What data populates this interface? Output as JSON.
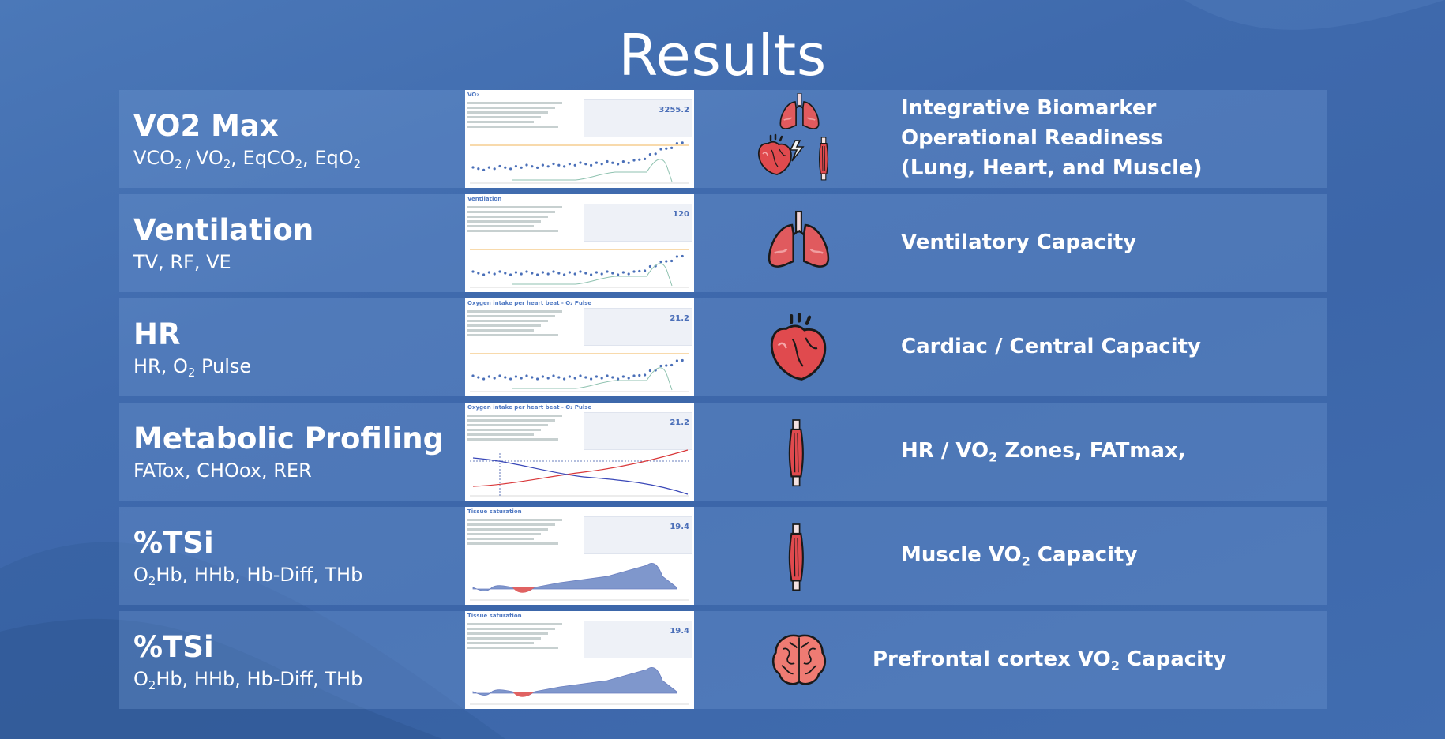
{
  "title": "Results",
  "rows": [
    {
      "head": "VO2 Max",
      "sub_html": "VCO<sub>2 /</sub> VO<sub>2</sub>, EqCO<sub>2</sub>, EqO<sub>2</sub>",
      "thumb_title": "VO₂",
      "thumb_value": "3255.2",
      "icon": "lungs-heart-muscle-icon",
      "right_lines": [
        "Integrative Biomarker",
        "Operational Readiness",
        "(Lung, Heart, and Muscle)"
      ]
    },
    {
      "head": "Ventilation",
      "sub_html": "TV, RF, VE",
      "thumb_title": "Ventilation",
      "thumb_value": "120",
      "icon": "lungs-icon",
      "right_html": "Ventilatory Capacity"
    },
    {
      "head": "HR",
      "sub_html": "HR, O<sub>2</sub> Pulse",
      "thumb_title": "Oxygen intake per heart beat - O₂ Pulse",
      "thumb_value": "21.2",
      "icon": "heart-icon",
      "right_html": "Cardiac / Central Capacity"
    },
    {
      "head": "Metabolic Profiling",
      "sub_html": "FATox, CHOox, RER",
      "thumb_title": "Oxygen intake per heart beat - O₂ Pulse",
      "thumb_value": "21.2",
      "icon": "muscle-icon",
      "right_html": "HR / VO<sub>2</sub> Zones, FATmax,"
    },
    {
      "head": "%TSi",
      "sub_html": "O<sub>2</sub>Hb, HHb, Hb-Diff, THb",
      "thumb_title": "Tissue saturation",
      "thumb_value": "19.4",
      "icon": "muscle-icon",
      "right_html": "Muscle VO<sub>2</sub> Capacity"
    },
    {
      "head": "%TSi",
      "sub_html": "O<sub>2</sub>Hb, HHb, Hb-Diff, THb",
      "thumb_title": "Tissue saturation",
      "thumb_value": "19.4",
      "icon": "brain-icon",
      "right_html": "Prefrontal cortex VO<sub>2</sub> Capacity"
    }
  ]
}
